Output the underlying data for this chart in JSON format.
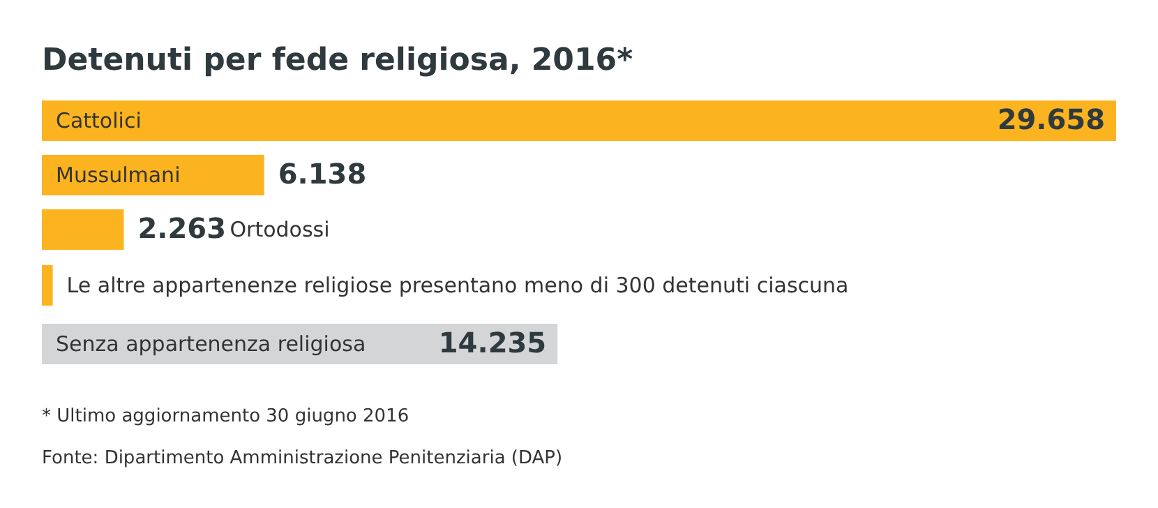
{
  "chart_data": {
    "type": "bar",
    "orientation": "horizontal",
    "title": "Detenuti per fede religiosa, 2016*",
    "categories": [
      "Cattolici",
      "Mussulmani",
      "Ortodossi",
      "Le altre appartenenze religiose presentano meno di 300 detenuti ciascuna",
      "Senza appartenenza religiosa"
    ],
    "values": [
      29658,
      6138,
      2263,
      300,
      14235
    ],
    "colors": [
      "#fbb41f",
      "#fbb41f",
      "#fbb41f",
      "#fbb41f",
      "#d4d5d7"
    ],
    "value_labels": [
      "29.658",
      "6.138",
      "2.263",
      null,
      "14.235"
    ],
    "annotations": [
      "* Ultimo aggiornamento 30 giugno 2016",
      "Fonte: Dipartimento Amministrazione Penitenziaria (DAP)"
    ]
  }
}
